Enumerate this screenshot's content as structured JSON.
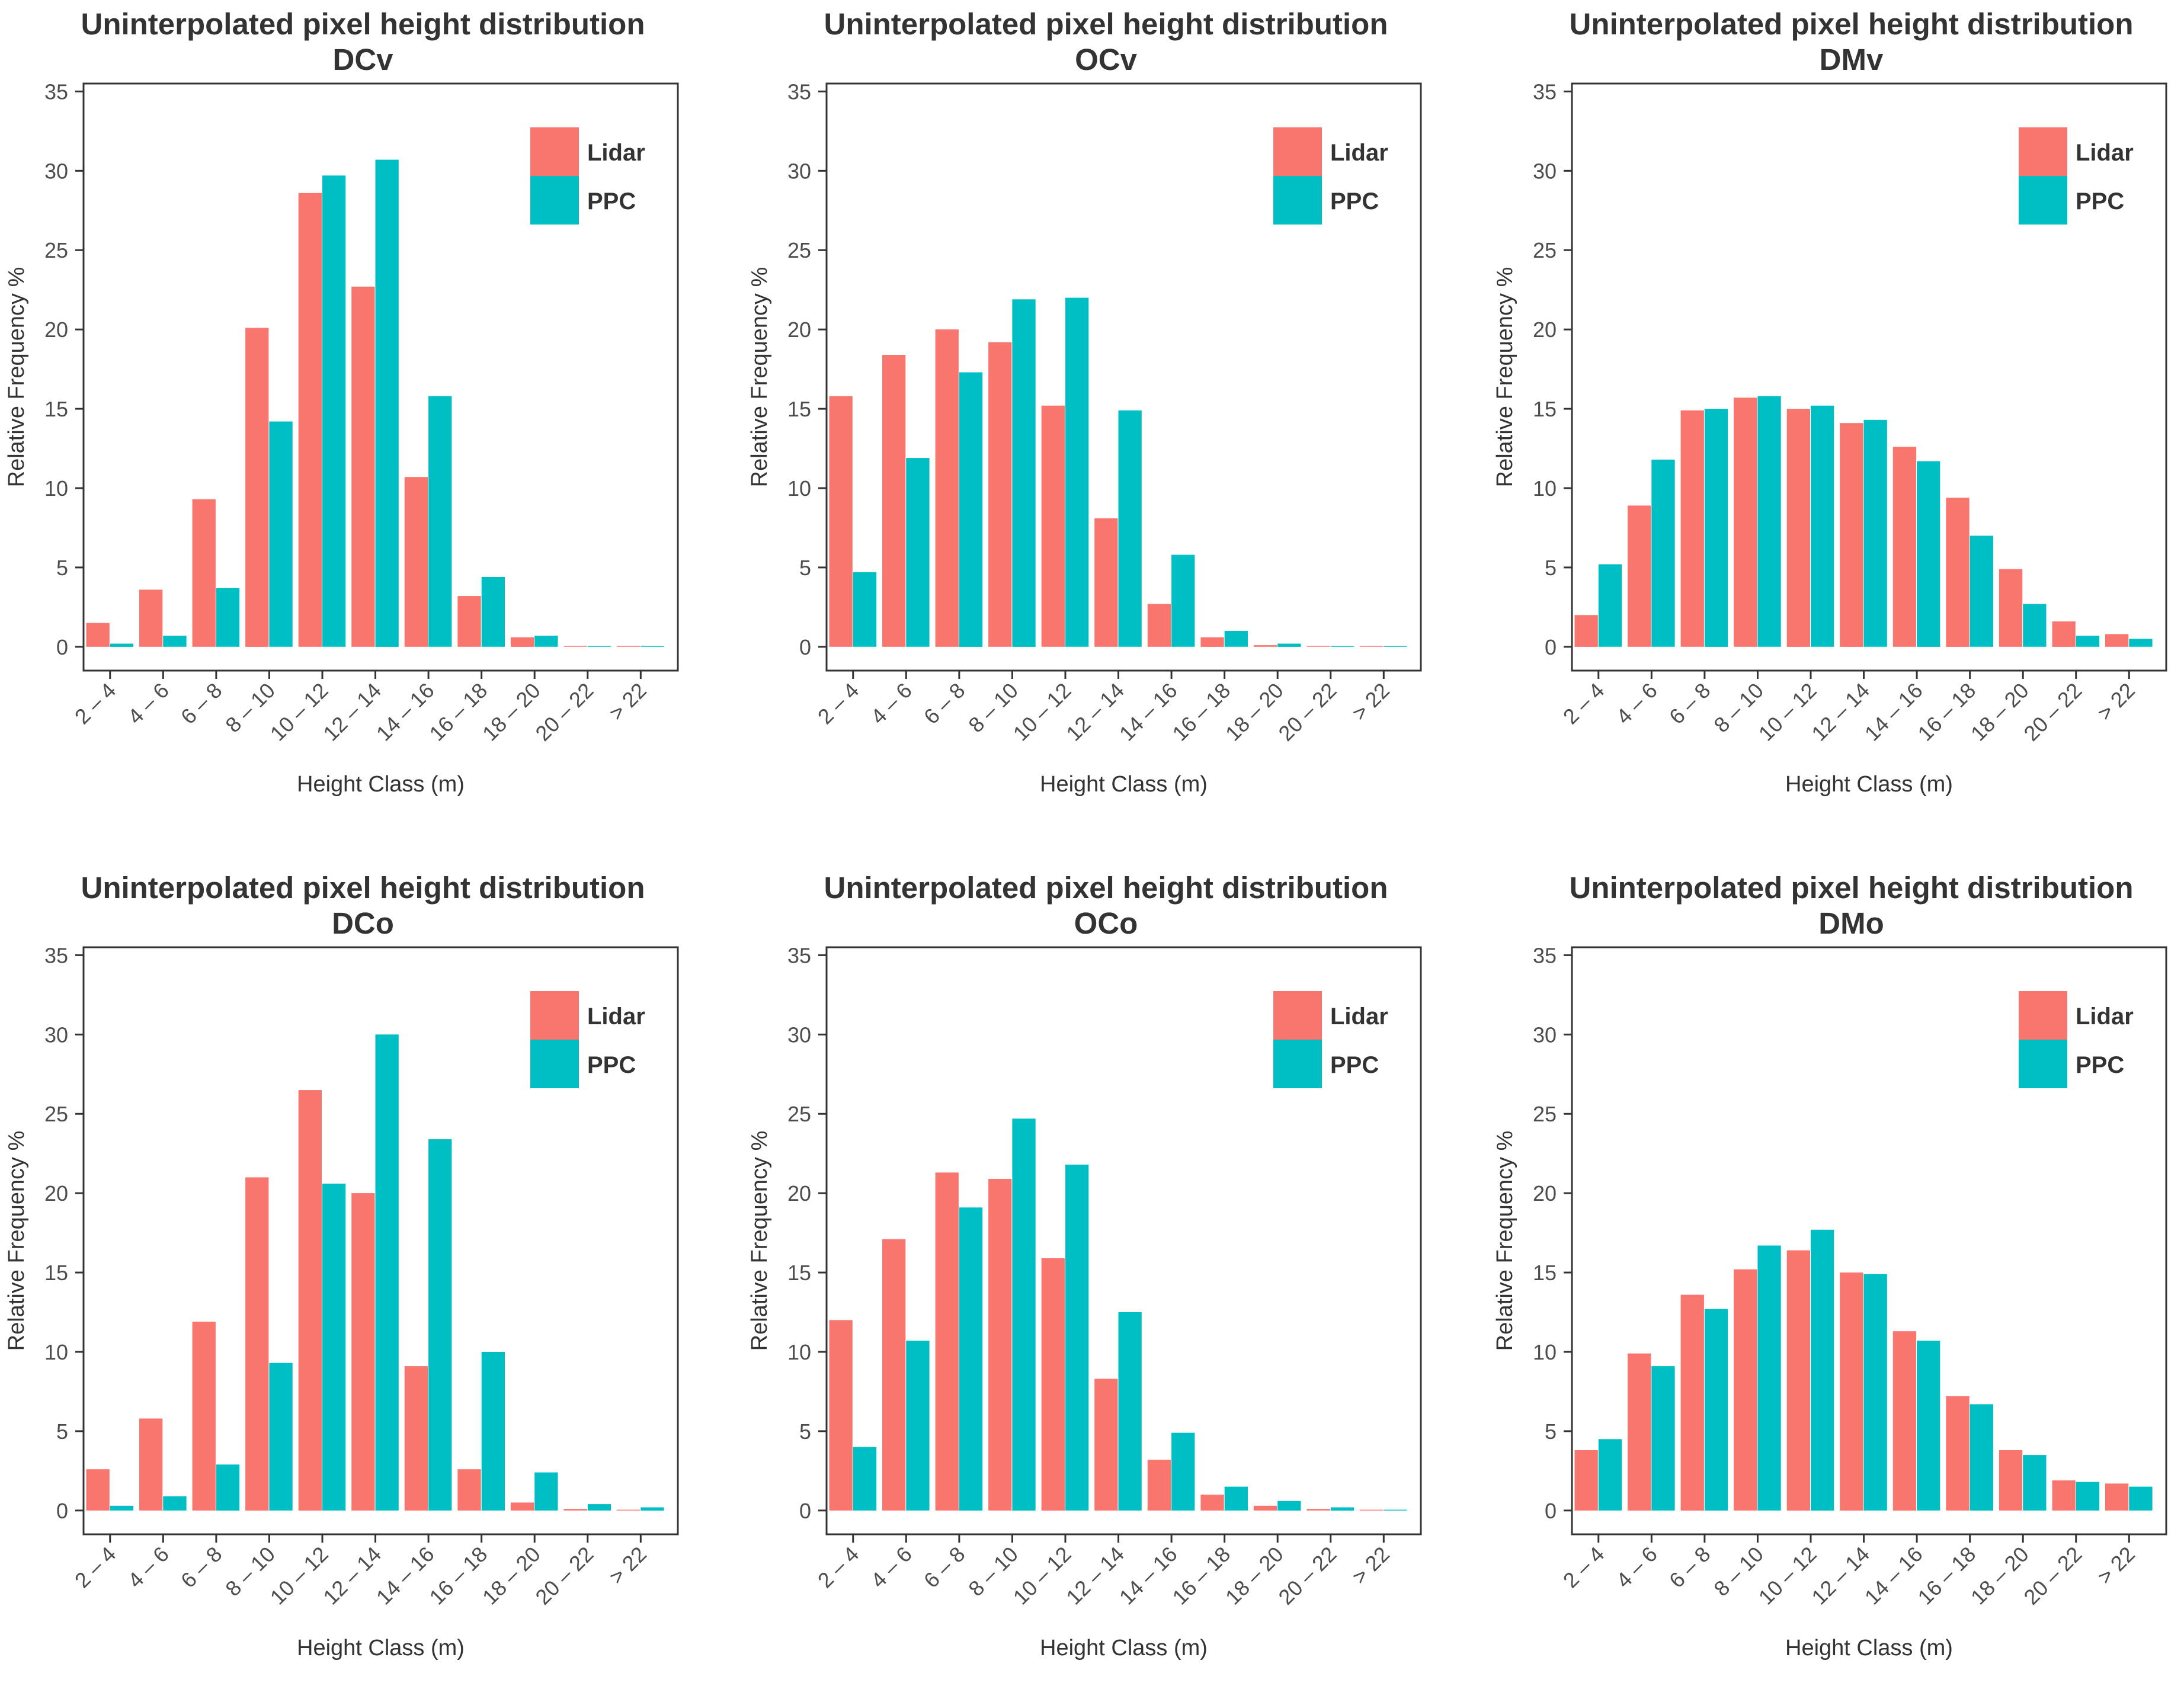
{
  "figure": {
    "colors": {
      "lidar": "#F8766D",
      "ppc": "#00BFC4",
      "axis": "#333333",
      "text": "#4d4d4d"
    }
  },
  "chart_data": [
    {
      "type": "bar",
      "title": "Uninterpolated pixel height distribution",
      "subtitle": "DCv",
      "xlabel": "Height Class (m)",
      "ylabel": "Relative Frequency %",
      "ylim": [
        -1.5,
        35.5
      ],
      "yticks": [
        0,
        5,
        10,
        15,
        20,
        25,
        30,
        35
      ],
      "legend_position": "top-right",
      "categories": [
        "2 – 4",
        "4 – 6",
        "6 – 8",
        "8 – 10",
        "10 – 12",
        "12 – 14",
        "14 – 16",
        "16 – 18",
        "18 – 20",
        "20 – 22",
        "> 22"
      ],
      "series": [
        {
          "name": "Lidar",
          "values": [
            1.5,
            3.6,
            9.3,
            20.1,
            28.6,
            22.7,
            10.7,
            3.2,
            0.6,
            0.05,
            0.05
          ]
        },
        {
          "name": "PPC",
          "values": [
            0.2,
            0.7,
            3.7,
            14.2,
            29.7,
            30.7,
            15.8,
            4.4,
            0.7,
            0.05,
            0.05
          ]
        }
      ]
    },
    {
      "type": "bar",
      "title": "Uninterpolated pixel height distribution",
      "subtitle": "OCv",
      "xlabel": "Height Class (m)",
      "ylabel": "Relative Frequency %",
      "ylim": [
        -1.5,
        35.5
      ],
      "yticks": [
        0,
        5,
        10,
        15,
        20,
        25,
        30,
        35
      ],
      "legend_position": "top-right",
      "categories": [
        "2 – 4",
        "4 – 6",
        "6 – 8",
        "8 – 10",
        "10 – 12",
        "12 – 14",
        "14 – 16",
        "16 – 18",
        "18 – 20",
        "20 – 22",
        "> 22"
      ],
      "series": [
        {
          "name": "Lidar",
          "values": [
            15.8,
            18.4,
            20.0,
            19.2,
            15.2,
            8.1,
            2.7,
            0.6,
            0.1,
            0.05,
            0.05
          ]
        },
        {
          "name": "PPC",
          "values": [
            4.7,
            11.9,
            17.3,
            21.9,
            22.0,
            14.9,
            5.8,
            1.0,
            0.2,
            0.05,
            0.05
          ]
        }
      ]
    },
    {
      "type": "bar",
      "title": "Uninterpolated pixel height distribution",
      "subtitle": "DMv",
      "xlabel": "Height Class (m)",
      "ylabel": "Relative Frequency %",
      "ylim": [
        -1.5,
        35.5
      ],
      "yticks": [
        0,
        5,
        10,
        15,
        20,
        25,
        30,
        35
      ],
      "legend_position": "top-right",
      "categories": [
        "2 – 4",
        "4 – 6",
        "6 – 8",
        "8 – 10",
        "10 – 12",
        "12 – 14",
        "14 – 16",
        "16 – 18",
        "18 – 20",
        "20 – 22",
        "> 22"
      ],
      "series": [
        {
          "name": "Lidar",
          "values": [
            2.0,
            8.9,
            14.9,
            15.7,
            15.0,
            14.1,
            12.6,
            9.4,
            4.9,
            1.6,
            0.8
          ]
        },
        {
          "name": "PPC",
          "values": [
            5.2,
            11.8,
            15.0,
            15.8,
            15.2,
            14.3,
            11.7,
            7.0,
            2.7,
            0.7,
            0.5
          ]
        }
      ]
    },
    {
      "type": "bar",
      "title": "Uninterpolated pixel height distribution",
      "subtitle": "DCo",
      "xlabel": "Height Class (m)",
      "ylabel": "Relative Frequency %",
      "ylim": [
        -1.5,
        35.5
      ],
      "yticks": [
        0,
        5,
        10,
        15,
        20,
        25,
        30,
        35
      ],
      "legend_position": "top-right",
      "categories": [
        "2 – 4",
        "4 – 6",
        "6 – 8",
        "8 – 10",
        "10 – 12",
        "12 – 14",
        "14 – 16",
        "16 – 18",
        "18 – 20",
        "20 – 22",
        "> 22"
      ],
      "series": [
        {
          "name": "Lidar",
          "values": [
            2.6,
            5.8,
            11.9,
            21.0,
            26.5,
            20.0,
            9.1,
            2.6,
            0.5,
            0.1,
            0.05
          ]
        },
        {
          "name": "PPC",
          "values": [
            0.3,
            0.9,
            2.9,
            9.3,
            20.6,
            30.0,
            23.4,
            10.0,
            2.4,
            0.4,
            0.2
          ]
        }
      ]
    },
    {
      "type": "bar",
      "title": "Uninterpolated pixel height distribution",
      "subtitle": "OCo",
      "xlabel": "Height Class (m)",
      "ylabel": "Relative Frequency %",
      "ylim": [
        -1.5,
        35.5
      ],
      "yticks": [
        0,
        5,
        10,
        15,
        20,
        25,
        30,
        35
      ],
      "legend_position": "top-right",
      "categories": [
        "2 – 4",
        "4 – 6",
        "6 – 8",
        "8 – 10",
        "10 – 12",
        "12 – 14",
        "14 – 16",
        "16 – 18",
        "18 – 20",
        "20 – 22",
        "> 22"
      ],
      "series": [
        {
          "name": "Lidar",
          "values": [
            12.0,
            17.1,
            21.3,
            20.9,
            15.9,
            8.3,
            3.2,
            1.0,
            0.3,
            0.1,
            0.05
          ]
        },
        {
          "name": "PPC",
          "values": [
            4.0,
            10.7,
            19.1,
            24.7,
            21.8,
            12.5,
            4.9,
            1.5,
            0.6,
            0.2,
            0.05
          ]
        }
      ]
    },
    {
      "type": "bar",
      "title": "Uninterpolated pixel height distribution",
      "subtitle": "DMo",
      "xlabel": "Height Class (m)",
      "ylabel": "Relative Frequency %",
      "ylim": [
        -1.5,
        35.5
      ],
      "yticks": [
        0,
        5,
        10,
        15,
        20,
        25,
        30,
        35
      ],
      "legend_position": "top-right",
      "categories": [
        "2 – 4",
        "4 – 6",
        "6 – 8",
        "8 – 10",
        "10 – 12",
        "12 – 14",
        "14 – 16",
        "16 – 18",
        "18 – 20",
        "20 – 22",
        "> 22"
      ],
      "series": [
        {
          "name": "Lidar",
          "values": [
            3.8,
            9.9,
            13.6,
            15.2,
            16.4,
            15.0,
            11.3,
            7.2,
            3.8,
            1.9,
            1.7
          ]
        },
        {
          "name": "PPC",
          "values": [
            4.5,
            9.1,
            12.7,
            16.7,
            17.7,
            14.9,
            10.7,
            6.7,
            3.5,
            1.8,
            1.5
          ]
        }
      ]
    }
  ]
}
